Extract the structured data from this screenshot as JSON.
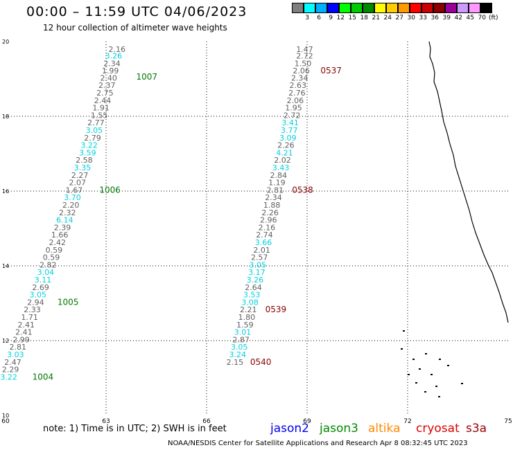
{
  "header": {
    "title": "00:00 – 11:59 UTC 04/06/2023",
    "subtitle": "12 hour collection of altimeter wave heights"
  },
  "colorbar": {
    "colors": [
      "#7f7f7f",
      "#00ffff",
      "#00b0ff",
      "#0000ff",
      "#00ff00",
      "#00cc00",
      "#008800",
      "#ffff00",
      "#ffcc00",
      "#ff9900",
      "#ff0000",
      "#cc0000",
      "#880000",
      "#990099",
      "#cc99ff",
      "#ff99ff",
      "#000000"
    ],
    "labels": [
      "3",
      "6",
      "9",
      "12",
      "15",
      "18",
      "21",
      "24",
      "27",
      "30",
      "33",
      "36",
      "39",
      "42",
      "45",
      "70"
    ],
    "unit": "(ft)"
  },
  "chart_data": {
    "type": "scatter",
    "xlim": [
      60,
      75
    ],
    "ylim": [
      10,
      20
    ],
    "xticks": [
      "60",
      "63",
      "66",
      "69",
      "72",
      "75"
    ],
    "yticks": [
      "10",
      "12",
      "14",
      "16",
      "18",
      "20"
    ],
    "grid": true,
    "passes": [
      {
        "satellite": "jason3",
        "points": [
          [
            63.58,
            19.8,
            "2.16",
            "gray"
          ],
          [
            63.48,
            19.62,
            "3.26",
            "cyan"
          ],
          [
            63.43,
            19.42,
            "2.34",
            "gray"
          ],
          [
            63.38,
            19.22,
            "1.99",
            "gray"
          ],
          [
            63.33,
            19.03,
            "2.40",
            "gray"
          ],
          [
            63.28,
            18.83,
            "2.37",
            "gray"
          ],
          [
            63.22,
            18.63,
            "2.75",
            "gray"
          ],
          [
            63.15,
            18.43,
            "2.44",
            "gray"
          ],
          [
            63.1,
            18.23,
            "1.91",
            "gray"
          ],
          [
            63.05,
            18.03,
            "1.55",
            "gray"
          ],
          [
            62.95,
            17.83,
            "2.77",
            "gray"
          ],
          [
            62.9,
            17.63,
            "3.05",
            "cyan"
          ],
          [
            62.85,
            17.43,
            "2.79",
            "gray"
          ],
          [
            62.75,
            17.23,
            "3.22",
            "cyan"
          ],
          [
            62.7,
            17.03,
            "3.59",
            "cyan"
          ],
          [
            62.6,
            16.83,
            "2.58",
            "gray"
          ],
          [
            62.55,
            16.63,
            "3.35",
            "cyan"
          ],
          [
            62.47,
            16.43,
            "2.27",
            "gray"
          ],
          [
            62.4,
            16.23,
            "2.07",
            "gray"
          ],
          [
            62.3,
            16.03,
            "1.67",
            "gray"
          ],
          [
            62.25,
            15.83,
            "3.70",
            "cyan"
          ],
          [
            62.2,
            15.63,
            "2.20",
            "gray"
          ],
          [
            62.1,
            15.43,
            "2.32",
            "gray"
          ],
          [
            62.02,
            15.23,
            "6.14",
            "cyan"
          ],
          [
            61.95,
            15.03,
            "2.39",
            "gray"
          ],
          [
            61.87,
            14.83,
            "1.66",
            "gray"
          ],
          [
            61.8,
            14.63,
            "2.42",
            "gray"
          ],
          [
            61.7,
            14.43,
            "0.59",
            "gray"
          ],
          [
            61.62,
            14.23,
            "0.59",
            "gray"
          ],
          [
            61.52,
            14.03,
            "2.82",
            "gray"
          ],
          [
            61.45,
            13.83,
            "3.04",
            "cyan"
          ],
          [
            61.37,
            13.63,
            "3.11",
            "cyan"
          ],
          [
            61.3,
            13.43,
            "2.69",
            "gray"
          ],
          [
            61.22,
            13.23,
            "3.05",
            "cyan"
          ],
          [
            61.15,
            13.03,
            "2.94",
            "gray"
          ],
          [
            61.05,
            12.83,
            "2.33",
            "gray"
          ],
          [
            60.97,
            12.63,
            "1.71",
            "gray"
          ],
          [
            60.87,
            12.43,
            "2.41",
            "gray"
          ],
          [
            60.8,
            12.23,
            "2.41",
            "gray"
          ],
          [
            60.72,
            12.03,
            "2.99",
            "gray"
          ],
          [
            60.62,
            11.83,
            "2.81",
            "gray"
          ],
          [
            60.55,
            11.63,
            "3.03",
            "cyan"
          ],
          [
            60.47,
            11.43,
            "2.47",
            "gray"
          ],
          [
            60.4,
            11.23,
            "2.29",
            "gray"
          ],
          [
            60.35,
            11.03,
            "3.22",
            "cyan"
          ]
        ],
        "times": [
          [
            63.9,
            19.06,
            "1007"
          ],
          [
            62.8,
            16.03,
            "1006"
          ],
          [
            61.55,
            13.03,
            "1005"
          ],
          [
            60.8,
            11.03,
            "1004"
          ]
        ]
      },
      {
        "satellite": "cryosat",
        "points": [
          [
            69.18,
            19.8,
            "1.47",
            "gray"
          ],
          [
            69.18,
            19.62,
            "2.72",
            "gray"
          ],
          [
            69.13,
            19.42,
            "1.50",
            "gray"
          ],
          [
            69.08,
            19.22,
            "2.06",
            "gray"
          ],
          [
            69.03,
            19.03,
            "2.34",
            "gray"
          ],
          [
            68.98,
            18.83,
            "2.63",
            "gray"
          ],
          [
            68.95,
            18.63,
            "2.76",
            "gray"
          ],
          [
            68.9,
            18.43,
            "2.06",
            "gray"
          ],
          [
            68.85,
            18.23,
            "1.95",
            "gray"
          ],
          [
            68.8,
            18.03,
            "2.72",
            "gray"
          ],
          [
            68.75,
            17.83,
            "3.41",
            "cyan"
          ],
          [
            68.72,
            17.63,
            "3.77",
            "cyan"
          ],
          [
            68.68,
            17.43,
            "3.09",
            "cyan"
          ],
          [
            68.62,
            17.23,
            "2.26",
            "gray"
          ],
          [
            68.58,
            17.03,
            "4.21",
            "cyan"
          ],
          [
            68.52,
            16.83,
            "2.02",
            "gray"
          ],
          [
            68.47,
            16.63,
            "3.43",
            "cyan"
          ],
          [
            68.4,
            16.43,
            "2.84",
            "gray"
          ],
          [
            68.35,
            16.23,
            "1.19",
            "gray"
          ],
          [
            68.3,
            16.03,
            "2.81",
            "gray"
          ],
          [
            68.25,
            15.83,
            "2.34",
            "gray"
          ],
          [
            68.2,
            15.63,
            "1.88",
            "gray"
          ],
          [
            68.15,
            15.43,
            "2.26",
            "gray"
          ],
          [
            68.1,
            15.23,
            "2.96",
            "gray"
          ],
          [
            68.05,
            15.03,
            "2.16",
            "gray"
          ],
          [
            67.98,
            14.83,
            "2.74",
            "gray"
          ],
          [
            67.95,
            14.63,
            "3.66",
            "cyan"
          ],
          [
            67.9,
            14.43,
            "2.01",
            "gray"
          ],
          [
            67.83,
            14.23,
            "2.57",
            "gray"
          ],
          [
            67.78,
            14.03,
            "3.05",
            "cyan"
          ],
          [
            67.75,
            13.83,
            "3.17",
            "cyan"
          ],
          [
            67.7,
            13.63,
            "3.26",
            "cyan"
          ],
          [
            67.65,
            13.43,
            "2.64",
            "gray"
          ],
          [
            67.6,
            13.23,
            "3.53",
            "cyan"
          ],
          [
            67.55,
            13.03,
            "3.08",
            "cyan"
          ],
          [
            67.5,
            12.83,
            "2.21",
            "gray"
          ],
          [
            67.45,
            12.63,
            "1.80",
            "gray"
          ],
          [
            67.4,
            12.43,
            "1.59",
            "gray"
          ],
          [
            67.33,
            12.23,
            "3.01",
            "cyan"
          ],
          [
            67.28,
            12.03,
            "2.87",
            "gray"
          ],
          [
            67.23,
            11.83,
            "3.05",
            "cyan"
          ],
          [
            67.18,
            11.63,
            "3.24",
            "cyan"
          ],
          [
            67.1,
            11.43,
            "2.15",
            "gray"
          ]
        ],
        "times": [
          [
            69.4,
            19.22,
            "0537"
          ],
          [
            68.55,
            16.03,
            "0538"
          ],
          [
            67.75,
            12.83,
            "0539"
          ],
          [
            67.3,
            11.43,
            "0540"
          ]
        ]
      }
    ],
    "label_colors": {
      "gray": "#606060",
      "cyan": "#00d0e0",
      "time_jason3": "#007700",
      "time_cryosat": "#880000"
    }
  },
  "note": "note: 1) Time is in UTC; 2) SWH is in feet",
  "legend": [
    {
      "label": "jason2",
      "color": "#0000ee"
    },
    {
      "label": "jason3",
      "color": "#008800"
    },
    {
      "label": "altika",
      "color": "#ff8800"
    },
    {
      "label": "cryosat",
      "color": "#dd0000"
    },
    {
      "label": "s3a",
      "color": "#990000"
    }
  ],
  "credit": "NOAA/NESDIS Center for Satellite Applications and Research    Apr  8 08:32:45 UTC 2023"
}
